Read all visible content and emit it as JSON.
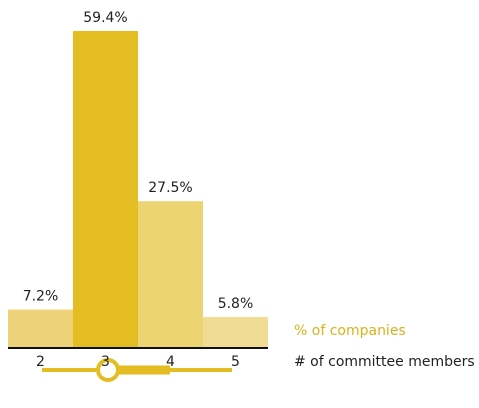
{
  "chart_data": {
    "type": "bar",
    "categories": [
      "2",
      "3",
      "4",
      "5"
    ],
    "values": [
      7.2,
      59.4,
      27.5,
      5.8
    ],
    "value_labels": [
      "7.2%",
      "59.4%",
      "27.5%",
      "5.8%"
    ],
    "colors": [
      "#edd27a",
      "#e3bd22",
      "#ecd473",
      "#f0dc95"
    ],
    "y_label": "% of companies",
    "x_label": "# of committee members"
  }
}
